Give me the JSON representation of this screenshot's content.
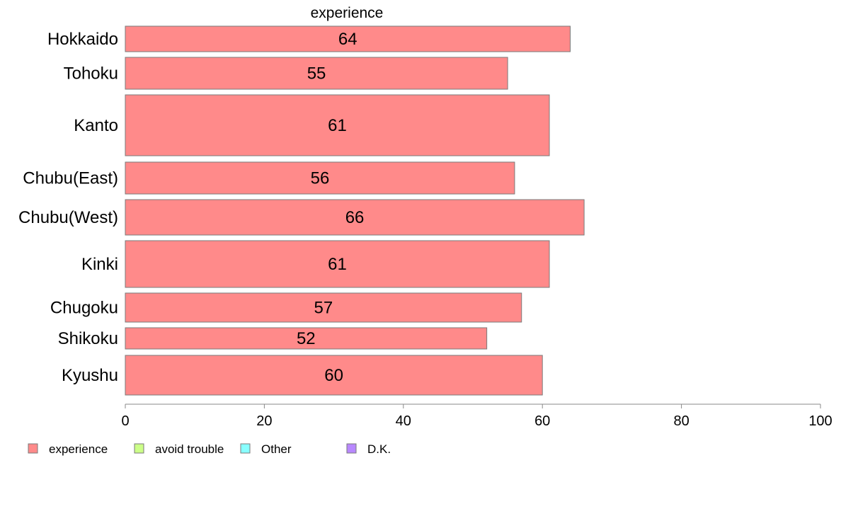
{
  "chart_data": {
    "type": "bar",
    "orientation": "horizontal",
    "title": "experience",
    "categories": [
      "Hokkaido",
      "Tohoku",
      "Kanto",
      "Chubu(East)",
      "Chubu(West)",
      "Kinki",
      "Chugoku",
      "Shikoku",
      "Kyushu"
    ],
    "values": [
      64,
      55,
      61,
      56,
      66,
      61,
      57,
      52,
      60
    ],
    "xlim": [
      0,
      100
    ],
    "xticks": [
      0,
      20,
      40,
      60,
      80,
      100
    ],
    "grid": false,
    "legend_position": "bottom",
    "legend": [
      {
        "label": "experience",
        "color": "#ff8a8a"
      },
      {
        "label": "avoid trouble",
        "color": "#ccff88"
      },
      {
        "label": "Other",
        "color": "#88ffff"
      },
      {
        "label": "D.K.",
        "color": "#b888ff"
      }
    ]
  }
}
